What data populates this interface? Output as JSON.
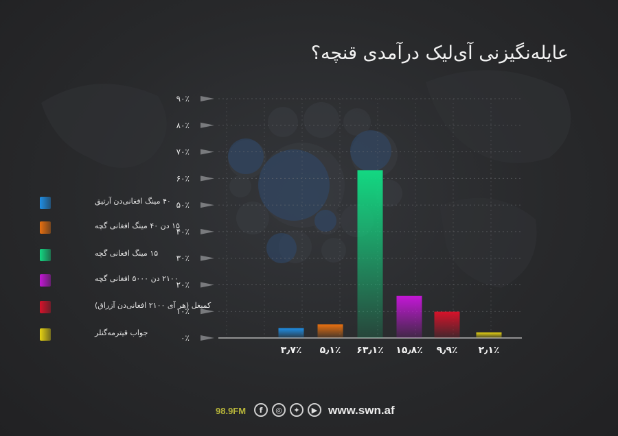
{
  "header": {
    "title": "عایله‌نگیزنی آی‌لیک درآمدی قنچه؟"
  },
  "chart_data": {
    "type": "bar",
    "title": "عایله‌نگیزنی آی‌لیک درآمدی قنچه؟",
    "xlabel": "",
    "ylabel": "",
    "ylim": [
      0,
      90
    ],
    "yticks": [
      "۰٪",
      "۱۰٪",
      "۲۰٪",
      "۳۰٪",
      "۴۰٪",
      "۵۰٪",
      "۶۰٪",
      "۷۰٪",
      "۸۰٪",
      "۹۰٪"
    ],
    "grid": true,
    "legend_position": "left",
    "categories": [
      "۴۰ مینگ افغانی‌دن آرتیق",
      "۱۵ دن ۴۰ مینگ افغانی گچه",
      "۱۵ مینگ افغانی گچه",
      "۲۱۰۰ دن ۵۰۰۰ افغانی گچه",
      "کمبغل (هر آی ۲۱۰۰ افغانی‌دن آزراق)",
      "جواب قیترمه‌گنلر"
    ],
    "values": [
      3.7,
      5.1,
      63.1,
      15.8,
      9.9,
      2.1
    ],
    "value_labels": [
      "۳٫۷٪",
      "۵٫۱٪",
      "۶۳٫۱٪",
      "۱۵٫۸٪",
      "۹٫۹٪",
      "۲٫۱٪"
    ],
    "colors": [
      "#1f8fe6",
      "#e8700f",
      "#13d882",
      "#c317d6",
      "#d8122a",
      "#e8d412"
    ]
  },
  "footer": {
    "radio": "98.9FM",
    "social_icons": [
      "facebook-icon",
      "instagram-icon",
      "twitter-icon",
      "youtube-icon"
    ],
    "website": "www.swn.af"
  }
}
